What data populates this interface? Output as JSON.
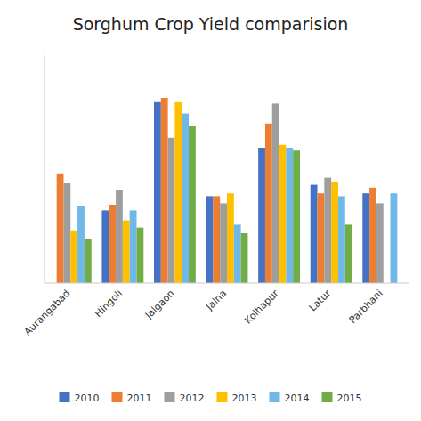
{
  "chart_data": {
    "type": "bar",
    "title": "Sorghum Crop Yield comparision",
    "categories": [
      "Aurangabad",
      "Hingoli",
      "Jalgaon",
      "Jalna",
      "Kolhapur",
      "Latur",
      "Parbhani"
    ],
    "series": [
      {
        "name": "2010",
        "color": "#4472C4",
        "values": [
          0.0,
          2.55,
          6.35,
          3.05,
          4.75,
          3.45,
          3.15
        ]
      },
      {
        "name": "2011",
        "color": "#ED7D31",
        "values": [
          3.85,
          2.75,
          6.5,
          3.05,
          5.6,
          3.15,
          3.35
        ]
      },
      {
        "name": "2012",
        "color": "#9E9E9E",
        "values": [
          3.5,
          3.25,
          5.1,
          2.8,
          6.3,
          3.7,
          2.8
        ]
      },
      {
        "name": "2013",
        "color": "#FFC000",
        "values": [
          1.85,
          2.2,
          6.35,
          3.15,
          4.85,
          3.55,
          0.0
        ]
      },
      {
        "name": "2014",
        "color": "#70B8E8",
        "values": [
          2.7,
          2.55,
          5.95,
          2.05,
          4.75,
          3.05,
          3.15
        ]
      },
      {
        "name": "2015",
        "color": "#70AD47",
        "values": [
          1.55,
          1.95,
          5.5,
          1.75,
          4.65,
          2.05,
          0.0
        ]
      }
    ],
    "ylim": [
      0,
      8
    ],
    "grid": false,
    "legend": "bottom",
    "tick_labels": "x"
  }
}
